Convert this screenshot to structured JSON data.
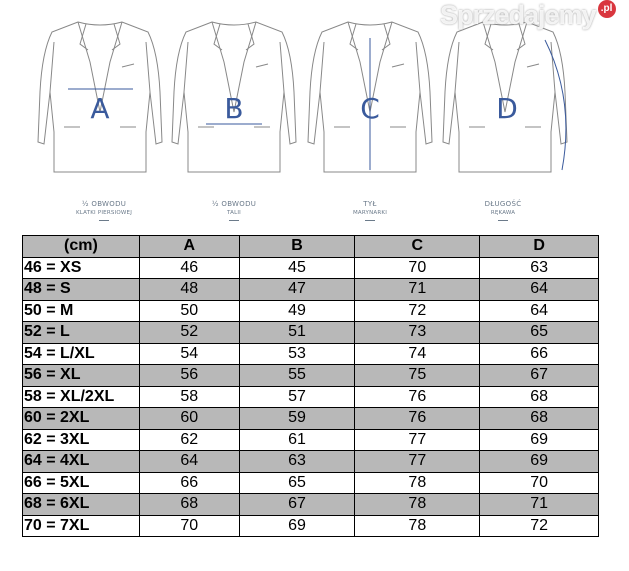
{
  "illustration": {
    "letters": [
      "A",
      "B",
      "C",
      "D"
    ],
    "accent_color": "#3a5a9c",
    "captions": [
      {
        "line1": "½ OBWODU",
        "line2": "KLATKI PIERSIOWEJ"
      },
      {
        "line1": "½ OBWODU",
        "line2": "TALII"
      },
      {
        "line1": "TYŁ",
        "line2": "MARYNARKI"
      },
      {
        "line1": "DŁUGOŚĆ",
        "line2": "RĘKAWA"
      }
    ]
  },
  "table": {
    "headers": [
      "(cm)",
      "A",
      "B",
      "C",
      "D"
    ],
    "rows": [
      [
        "46 = XS",
        "46",
        "45",
        "70",
        "63"
      ],
      [
        "48 = S",
        "48",
        "47",
        "71",
        "64"
      ],
      [
        "50 = M",
        "50",
        "49",
        "72",
        "64"
      ],
      [
        "52 = L",
        "52",
        "51",
        "73",
        "65"
      ],
      [
        "54 = L/XL",
        "54",
        "53",
        "74",
        "66"
      ],
      [
        "56 = XL",
        "56",
        "55",
        "75",
        "67"
      ],
      [
        "58 = XL/2XL",
        "58",
        "57",
        "76",
        "68"
      ],
      [
        "60 = 2XL",
        "60",
        "59",
        "76",
        "68"
      ],
      [
        "62 = 3XL",
        "62",
        "61",
        "77",
        "69"
      ],
      [
        "64 = 4XL",
        "64",
        "63",
        "77",
        "69"
      ],
      [
        "66 = 5XL",
        "66",
        "65",
        "78",
        "70"
      ],
      [
        "68 = 6XL",
        "68",
        "67",
        "78",
        "71"
      ],
      [
        "70 = 7XL",
        "70",
        "69",
        "78",
        "72"
      ]
    ]
  },
  "watermark": {
    "text": "Sprzedajemy",
    "badge": ".pl"
  }
}
